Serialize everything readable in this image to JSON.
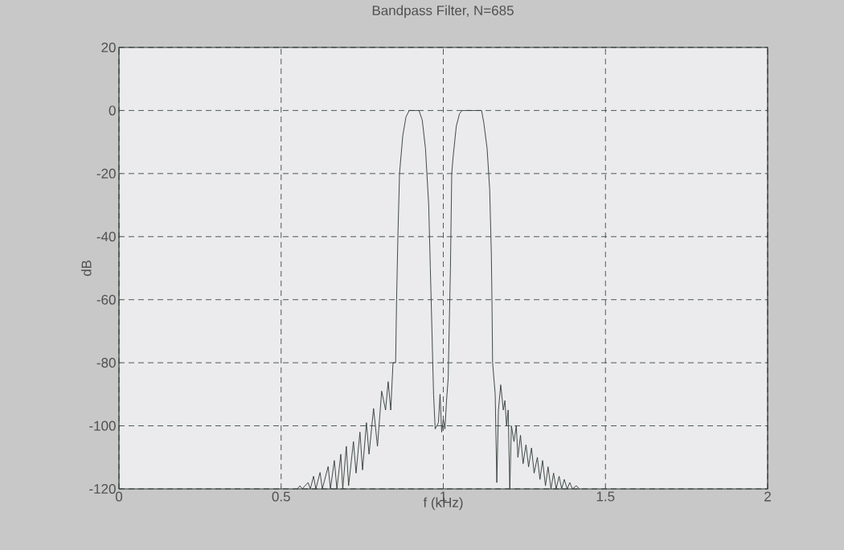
{
  "chart_data": {
    "type": "line",
    "title": "Bandpass Filter,  N=685",
    "xlabel": "f (kHz)",
    "ylabel": "dB",
    "xlim": [
      0,
      2
    ],
    "ylim": [
      -120,
      20
    ],
    "xticks": [
      0,
      0.5,
      1,
      1.5,
      2
    ],
    "yticks": [
      -120,
      -100,
      -80,
      -60,
      -40,
      -20,
      0,
      20
    ],
    "grid": true,
    "series": [
      {
        "color": "#2f3a33",
        "x": [
          0.55,
          0.558,
          0.565,
          0.583,
          0.59,
          0.6,
          0.607,
          0.62,
          0.627,
          0.645,
          0.652,
          0.664,
          0.672,
          0.684,
          0.69,
          0.701,
          0.708,
          0.723,
          0.731,
          0.743,
          0.751,
          0.763,
          0.771,
          0.785,
          0.797,
          0.81,
          0.822,
          0.83,
          0.838,
          0.845,
          0.853,
          0.856,
          0.86,
          0.865,
          0.875,
          0.885,
          0.895,
          0.925,
          0.935,
          0.945,
          0.955,
          0.96,
          0.965,
          0.97,
          0.975,
          0.985,
          0.99,
          0.995,
          1.0,
          1.005,
          1.01,
          1.015,
          1.018,
          1.022,
          1.026,
          1.03,
          1.04,
          1.05,
          1.058,
          1.118,
          1.125,
          1.135,
          1.143,
          1.148,
          1.15,
          1.152,
          1.16,
          1.165,
          1.17,
          1.177,
          1.185,
          1.19,
          1.195,
          1.2,
          1.205,
          1.21,
          1.218,
          1.225,
          1.23,
          1.238,
          1.246,
          1.255,
          1.263,
          1.272,
          1.28,
          1.29,
          1.298,
          1.306,
          1.315,
          1.323,
          1.332,
          1.34,
          1.348,
          1.357,
          1.365,
          1.373,
          1.382,
          1.39,
          1.398,
          1.41,
          1.42
        ],
        "values": [
          -120,
          -119,
          -120,
          -118,
          -120,
          -116,
          -120,
          -114.8,
          -120,
          -112.9,
          -120,
          -111,
          -120,
          -109,
          -120,
          -106.5,
          -119,
          -105,
          -115,
          -102,
          -114,
          -99,
          -109,
          -94.5,
          -106.5,
          -89,
          -95,
          -86,
          -95,
          -80,
          -80,
          -60,
          -40,
          -20,
          -8,
          -2,
          0,
          0,
          -3,
          -12,
          -30,
          -50,
          -70,
          -90,
          -101,
          -99,
          -90,
          -102,
          -98,
          -101,
          -92,
          -85,
          -70,
          -50,
          -20,
          -15,
          -5,
          -1,
          0,
          0,
          -4,
          -12,
          -25,
          -45,
          -60,
          -80,
          -90,
          -118,
          -95,
          -87,
          -95,
          -92,
          -100,
          -95,
          -120,
          -100,
          -105,
          -100,
          -110,
          -103,
          -112,
          -106,
          -113,
          -107,
          -115,
          -110,
          -117,
          -111,
          -119,
          -113,
          -120,
          -115,
          -120,
          -116,
          -120,
          -117,
          -120,
          -118,
          -120,
          -119,
          -120
        ]
      }
    ]
  }
}
